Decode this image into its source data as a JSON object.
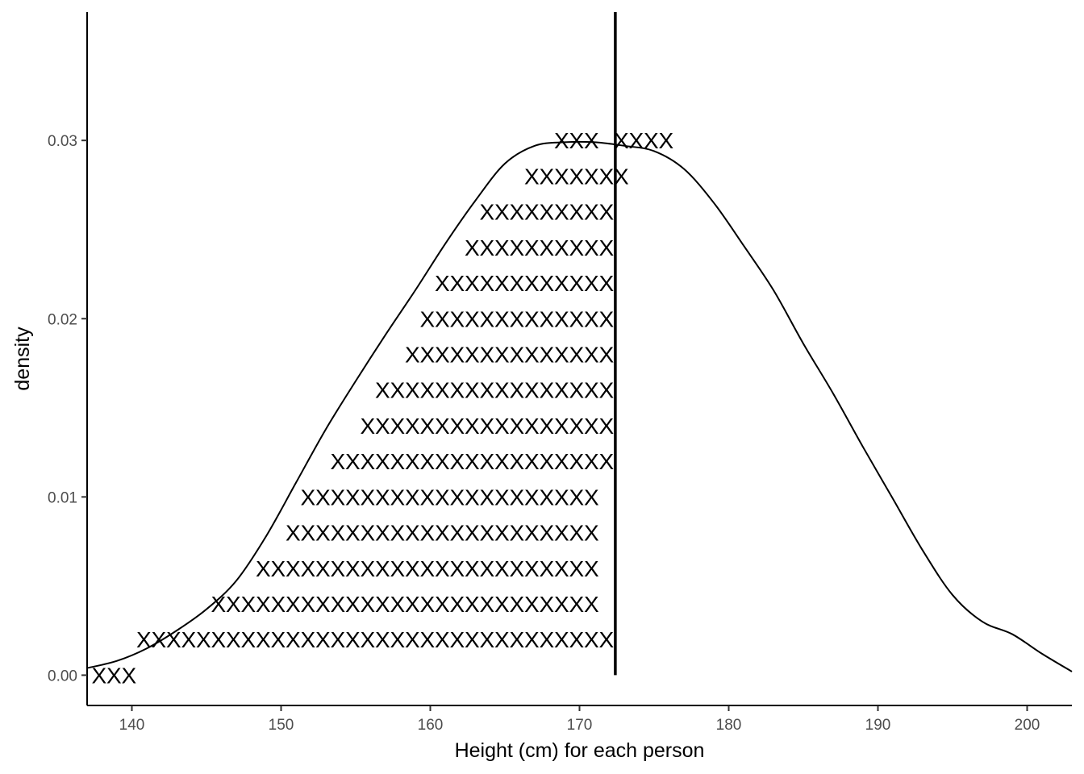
{
  "chart_data": {
    "type": "scatter",
    "subtype": "stacked-x-dotplot-with-density",
    "title": "",
    "xlabel": "Height (cm) for each person",
    "ylabel": "density",
    "xlim": [
      137,
      203
    ],
    "ylim": [
      -0.0017,
      0.0372
    ],
    "x_ticks": [
      140,
      150,
      160,
      170,
      180,
      190,
      200
    ],
    "x_tick_labels": [
      "140",
      "150",
      "160",
      "170",
      "180",
      "190",
      "200"
    ],
    "y_ticks": [
      0.0,
      0.01,
      0.02,
      0.03
    ],
    "y_tick_labels": [
      "0.00",
      "0.01",
      "0.02",
      "0.03"
    ],
    "grid": false,
    "marker": "X",
    "vertical_line": {
      "x": 172.4,
      "label": ""
    },
    "rows": [
      {
        "y": 0.0,
        "x_start": 137.8,
        "count": 3
      },
      {
        "y": 0.002,
        "x_start": 140.8,
        "count": 32
      },
      {
        "y": 0.004,
        "x_start": 145.8,
        "count": 26
      },
      {
        "y": 0.006,
        "x_start": 148.8,
        "count": 23
      },
      {
        "y": 0.008,
        "x_start": 150.8,
        "count": 21
      },
      {
        "y": 0.01,
        "x_start": 151.8,
        "count": 20
      },
      {
        "y": 0.012,
        "x_start": 153.8,
        "count": 19
      },
      {
        "y": 0.014,
        "x_start": 155.8,
        "count": 17
      },
      {
        "y": 0.016,
        "x_start": 156.8,
        "count": 16
      },
      {
        "y": 0.018,
        "x_start": 158.8,
        "count": 14
      },
      {
        "y": 0.02,
        "x_start": 159.8,
        "count": 13
      },
      {
        "y": 0.022,
        "x_start": 160.8,
        "count": 12
      },
      {
        "y": 0.024,
        "x_start": 162.8,
        "count": 10
      },
      {
        "y": 0.026,
        "x_start": 163.8,
        "count": 9
      },
      {
        "y": 0.028,
        "x_start": 166.8,
        "count": 7
      },
      {
        "y": 0.03,
        "x_positions": [
          168.8,
          169.8,
          170.8,
          172.8,
          173.8,
          174.8,
          175.8
        ]
      }
    ],
    "density_curve": {
      "x": [
        137,
        139,
        141,
        143,
        145,
        147,
        149,
        151,
        153,
        155,
        157,
        159,
        161,
        163,
        165,
        167,
        169,
        171,
        173,
        175,
        177,
        179,
        181,
        183,
        185,
        187,
        189,
        191,
        193,
        195,
        197,
        199,
        201,
        203
      ],
      "y": [
        0.0004,
        0.0008,
        0.0015,
        0.0025,
        0.0037,
        0.0053,
        0.0078,
        0.0108,
        0.0138,
        0.0165,
        0.0191,
        0.0216,
        0.0242,
        0.0266,
        0.0287,
        0.0297,
        0.0299,
        0.0299,
        0.0297,
        0.0294,
        0.0284,
        0.0265,
        0.0241,
        0.0216,
        0.0186,
        0.0158,
        0.0128,
        0.0099,
        0.007,
        0.0045,
        0.003,
        0.0023,
        0.0012,
        0.0002
      ]
    }
  }
}
